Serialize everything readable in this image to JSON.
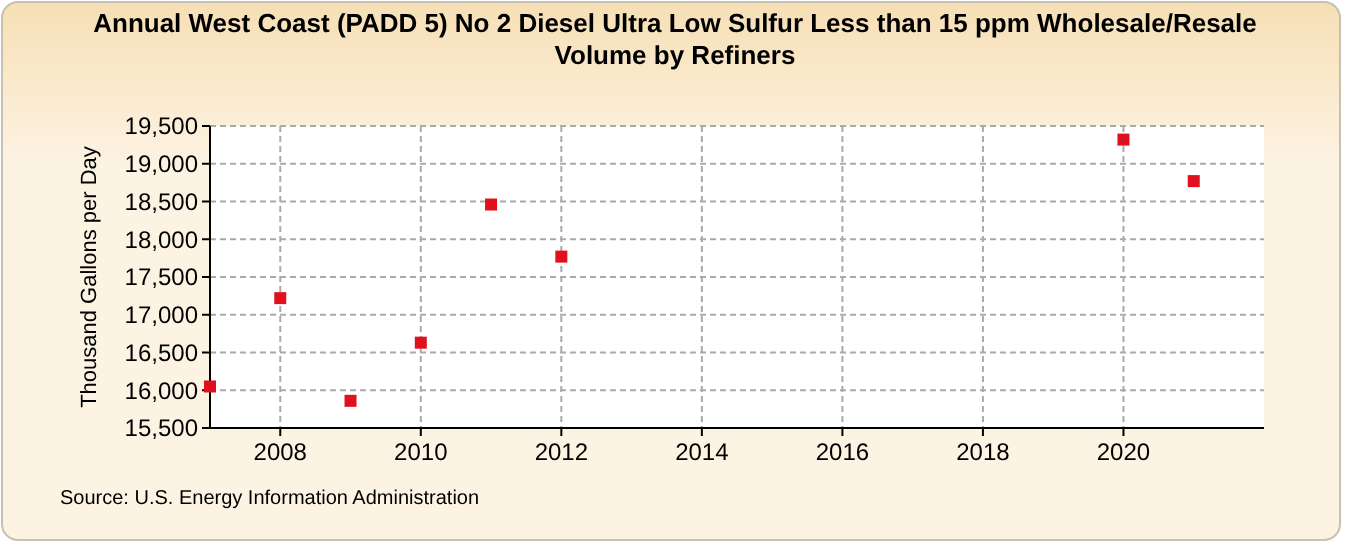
{
  "chart_data": {
    "type": "scatter",
    "title": "Annual West Coast (PADD 5) No 2 Diesel Ultra Low Sulfur Less than 15 ppm Wholesale/Resale Volume by Refiners",
    "ylabel": "Thousand Gallons per Day",
    "x": [
      2007,
      2008,
      2009,
      2010,
      2011,
      2012,
      2020,
      2021
    ],
    "series": [
      {
        "color": "#e0101c",
        "values": [
          16050,
          17220,
          15860,
          16630,
          18460,
          17770,
          19320,
          18770
        ]
      }
    ],
    "xlim": [
      2007,
      2022
    ],
    "xticks": [
      2008,
      2010,
      2012,
      2014,
      2016,
      2018,
      2020
    ],
    "ylim": [
      15500,
      19500
    ],
    "yticks": [
      {
        "value": 15500,
        "label": "15,500"
      },
      {
        "value": 16000,
        "label": "16,000"
      },
      {
        "value": 16500,
        "label": "16,500"
      },
      {
        "value": 17000,
        "label": "17,000"
      },
      {
        "value": 17500,
        "label": "17,500"
      },
      {
        "value": 18000,
        "label": "18,000"
      },
      {
        "value": 18500,
        "label": "18,500"
      },
      {
        "value": 19000,
        "label": "19,000"
      },
      {
        "value": 19500,
        "label": "19,500"
      }
    ],
    "grid": true,
    "marker": "square",
    "annotations": [
      "Source: U.S. Energy Information Administration"
    ]
  }
}
